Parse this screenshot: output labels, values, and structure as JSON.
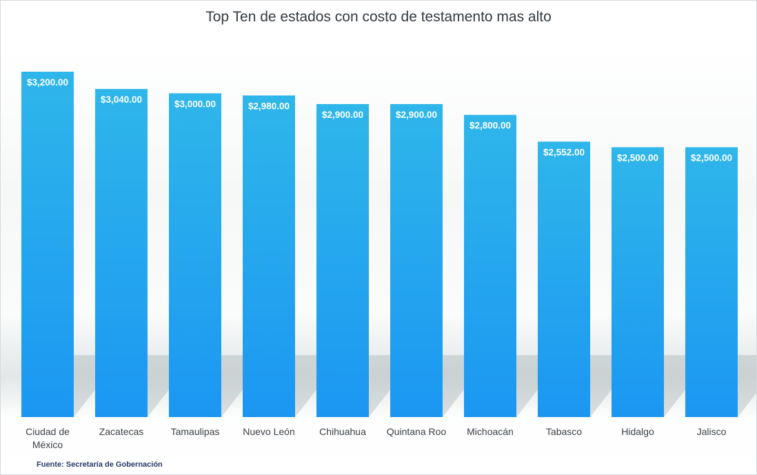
{
  "chart_data": {
    "type": "bar",
    "title": "Top Ten de estados con costo de testamento mas alto",
    "categories": [
      "Ciudad de México",
      "Zacatecas",
      "Tamaulipas",
      "Nuevo León",
      "Chihuahua",
      "Quintana Roo",
      "Michoacán",
      "Tabasco",
      "Hidalgo",
      "Jalisco"
    ],
    "category_lines": [
      [
        "Ciudad de",
        "México"
      ],
      [
        "Zacatecas"
      ],
      [
        "Tamaulipas"
      ],
      [
        "Nuevo León"
      ],
      [
        "Chihuahua"
      ],
      [
        "Quintana Roo"
      ],
      [
        "Michoacán"
      ],
      [
        "Tabasco"
      ],
      [
        "Hidalgo"
      ],
      [
        "Jalisco"
      ]
    ],
    "values": [
      3200,
      3040,
      3000,
      2980,
      2900,
      2900,
      2800,
      2552,
      2500,
      2500
    ],
    "value_labels": [
      "$3,200.00",
      "$3,040.00",
      "$3,000.00",
      "$2,980.00",
      "$2,900.00",
      "$2,900.00",
      "$2,800.00",
      "$2,552.00",
      "$2,500.00",
      "$2,500.00"
    ],
    "xlabel": "",
    "ylabel": "",
    "ylim": [
      0,
      3200
    ],
    "grid": false,
    "legend": "none",
    "colors": {
      "bar_top": "#2fb6ea",
      "bar_bottom": "#1b97f2"
    }
  },
  "source": "Fuente: Secretaría de Gobernación"
}
